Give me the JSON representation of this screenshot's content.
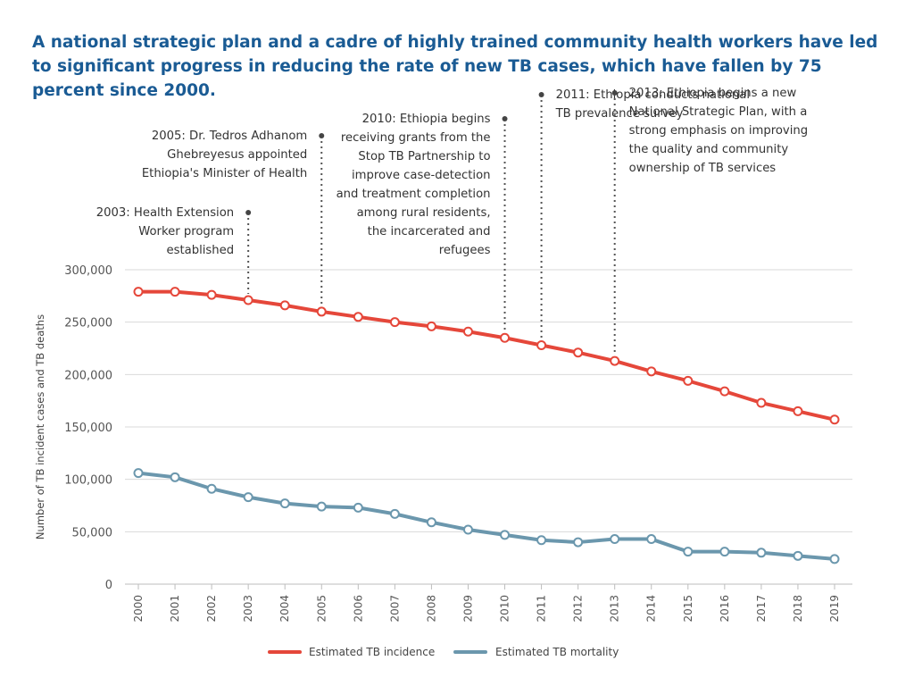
{
  "headline": "A national strategic plan and a cadre of highly trained community health workers have led to significant progress in reducing the rate of new TB cases, which have fallen by 75 percent since 2000.",
  "colors": {
    "incidence": "#e5473a",
    "mortality": "#6b97ad",
    "headline": "#1a5b94",
    "grid": "#d9d9d9"
  },
  "chart_data": {
    "type": "line",
    "title": "",
    "xlabel": "",
    "ylabel": "Number of TB incident cases and TB deaths",
    "x": [
      2000,
      2001,
      2002,
      2003,
      2004,
      2005,
      2006,
      2007,
      2008,
      2009,
      2010,
      2011,
      2012,
      2013,
      2014,
      2015,
      2016,
      2017,
      2018,
      2019
    ],
    "ylim": [
      0,
      300000
    ],
    "yticks": [
      0,
      50000,
      100000,
      150000,
      200000,
      250000,
      300000
    ],
    "ytick_labels": [
      "0",
      "50,000",
      "100,000",
      "150,000",
      "200,000",
      "250,000",
      "300,000"
    ],
    "grid": true,
    "legend_position": "bottom",
    "series": [
      {
        "name": "Estimated TB incidence",
        "color": "#e5473a",
        "values": [
          279000,
          279000,
          276000,
          271000,
          266000,
          260000,
          255000,
          250000,
          246000,
          241000,
          235000,
          228000,
          221000,
          213000,
          203000,
          194000,
          184000,
          173000,
          165000,
          157000
        ]
      },
      {
        "name": "Estimated TB mortality",
        "color": "#6b97ad",
        "values": [
          106000,
          102000,
          91000,
          83000,
          77000,
          74000,
          73000,
          67000,
          59000,
          52000,
          47000,
          42000,
          40000,
          43000,
          43000,
          31000,
          31000,
          30000,
          27000,
          24000
        ]
      }
    ],
    "annotations": [
      {
        "year": 2003,
        "lines": [
          "2003: Health Extension",
          "Worker program",
          "established"
        ],
        "align": "end"
      },
      {
        "year": 2005,
        "lines": [
          "2005: Dr. Tedros Adhanom",
          "Ghebreyesus appointed",
          "Ethiopia's Minister of Health"
        ],
        "align": "end"
      },
      {
        "year": 2010,
        "lines": [
          "2010: Ethiopia begins",
          "receiving grants from the",
          "Stop TB Partnership to",
          "improve case-detection",
          "and treatment completion",
          "among rural residents,",
          "the incarcerated and",
          "refugees"
        ],
        "align": "end"
      },
      {
        "year": 2011,
        "lines": [
          "2011: Ethiopia conducts national",
          "TB prevalence survey"
        ],
        "align": "start"
      },
      {
        "year": 2013,
        "lines": [
          "2013: Ethiopia begins a new",
          "National Strategic Plan, with a",
          "strong emphasis on improving",
          "the quality and community",
          "ownership of TB services"
        ],
        "align": "start"
      }
    ]
  }
}
